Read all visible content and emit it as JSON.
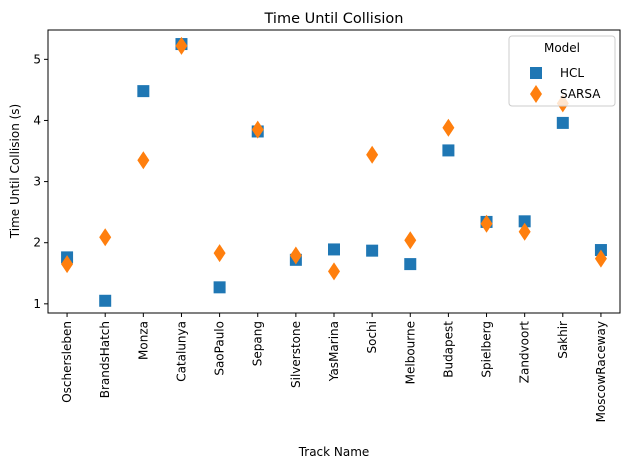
{
  "chart_data": {
    "type": "scatter",
    "title": "Time Until Collision",
    "xlabel": "Track Name",
    "ylabel": "Time Until Collision (s)",
    "categories": [
      "Oschersleben",
      "BrandsHatch",
      "Monza",
      "Catalunya",
      "SaoPaulo",
      "Sepang",
      "Silverstone",
      "YasMarina",
      "Sochi",
      "Melbourne",
      "Budapest",
      "Spielberg",
      "Zandvoort",
      "Sakhir",
      "MoscowRaceway"
    ],
    "ylim": [
      0.85,
      5.48
    ],
    "yticks": [
      1,
      2,
      3,
      4,
      5
    ],
    "grid": false,
    "legend": {
      "title": "Model",
      "position": "top-right"
    },
    "series": [
      {
        "name": "HCL",
        "marker": "square",
        "color": "#1f77b4",
        "values": [
          1.76,
          1.05,
          4.48,
          5.25,
          1.27,
          3.82,
          1.72,
          1.89,
          1.87,
          1.65,
          3.51,
          2.34,
          2.35,
          3.96,
          1.88
        ]
      },
      {
        "name": "SARSA",
        "marker": "diamond",
        "color": "#ff7f0e",
        "values": [
          1.65,
          2.09,
          3.35,
          5.22,
          1.83,
          3.85,
          1.79,
          1.53,
          3.44,
          2.04,
          3.88,
          2.31,
          2.18,
          4.28,
          1.74
        ]
      }
    ]
  }
}
